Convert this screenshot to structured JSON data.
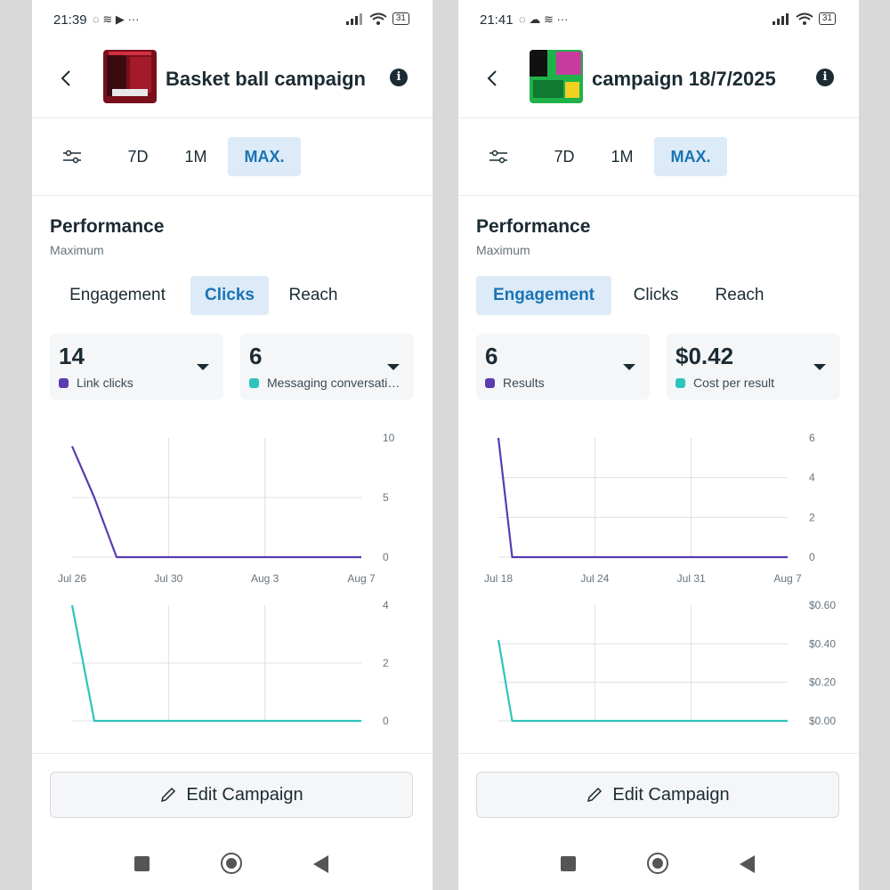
{
  "screens": [
    {
      "status": {
        "time": "21:39",
        "icons": "◌ ≋ ▶ ···",
        "battery": "31"
      },
      "header": {
        "title": "Basket ball  campaign",
        "info_icon": "info-icon",
        "back_icon": "chevron-left-icon"
      },
      "ranges": [
        "7D",
        "1M",
        "MAX."
      ],
      "active_range": "MAX.",
      "performance": {
        "title": "Performance",
        "subtitle": "Maximum"
      },
      "tabs": [
        "Engagement",
        "Clicks",
        "Reach"
      ],
      "active_tab": "Clicks",
      "metrics": [
        {
          "value": "14",
          "label": "Link clicks",
          "color": "#5b3bb0"
        },
        {
          "value": "6",
          "label": "Messaging conversations started",
          "color": "#2ec4bc"
        }
      ],
      "chart_data": [
        {
          "type": "line",
          "series": [
            {
              "values": [
                9.3,
                5,
                0,
                0,
                0,
                0,
                0,
                0,
                0,
                0,
                0,
                0,
                0,
                0
              ],
              "color": "#5b3bb0"
            }
          ],
          "x_ticks": [
            "Jul 26",
            "Jul 30",
            "Aug 3",
            "Aug 7"
          ],
          "y_ticks": [
            "10",
            "5",
            "0"
          ],
          "ylim": [
            0,
            10
          ]
        },
        {
          "type": "line",
          "series": [
            {
              "values": [
                4,
                0,
                0,
                0,
                0,
                0,
                0,
                0,
                0,
                0,
                0,
                0,
                0,
                0
              ],
              "color": "#2ec4bc"
            }
          ],
          "y_ticks": [
            "4",
            "2",
            "0"
          ],
          "ylim": [
            0,
            4
          ]
        }
      ],
      "edit_button": "Edit Campaign"
    },
    {
      "status": {
        "time": "21:41",
        "icons": "◌ ☁ ≋ ···",
        "battery": "31"
      },
      "header": {
        "title": "campaign 18/7/2025",
        "info_icon": "info-icon",
        "back_icon": "chevron-left-icon"
      },
      "ranges": [
        "7D",
        "1M",
        "MAX."
      ],
      "active_range": "MAX.",
      "performance": {
        "title": "Performance",
        "subtitle": "Maximum"
      },
      "tabs": [
        "Engagement",
        "Clicks",
        "Reach"
      ],
      "active_tab": "Engagement",
      "metrics": [
        {
          "value": "6",
          "label": "Results",
          "color": "#5b3bb0"
        },
        {
          "value": "$0.42",
          "label": "Cost per result",
          "color": "#2ec4bc"
        }
      ],
      "chart_data": [
        {
          "type": "line",
          "series": [
            {
              "values": [
                6,
                0,
                0,
                0,
                0,
                0,
                0,
                0,
                0,
                0,
                0,
                0,
                0,
                0,
                0,
                0,
                0,
                0,
                0,
                0,
                0,
                0
              ],
              "color": "#5b3bb0"
            }
          ],
          "x_ticks": [
            "Jul 18",
            "Jul 24",
            "Jul 31",
            "Aug 7"
          ],
          "y_ticks": [
            "6",
            "4",
            "2",
            "0"
          ],
          "ylim": [
            0,
            6
          ]
        },
        {
          "type": "line",
          "series": [
            {
              "values": [
                0.42,
                0,
                0,
                0,
                0,
                0,
                0,
                0,
                0,
                0,
                0,
                0,
                0,
                0,
                0,
                0,
                0,
                0,
                0,
                0,
                0,
                0
              ],
              "color": "#2ec4bc"
            }
          ],
          "y_ticks": [
            "$0.60",
            "$0.40",
            "$0.20",
            "$0.00"
          ],
          "ylim": [
            0,
            0.6
          ]
        }
      ],
      "edit_button": "Edit Campaign"
    }
  ]
}
